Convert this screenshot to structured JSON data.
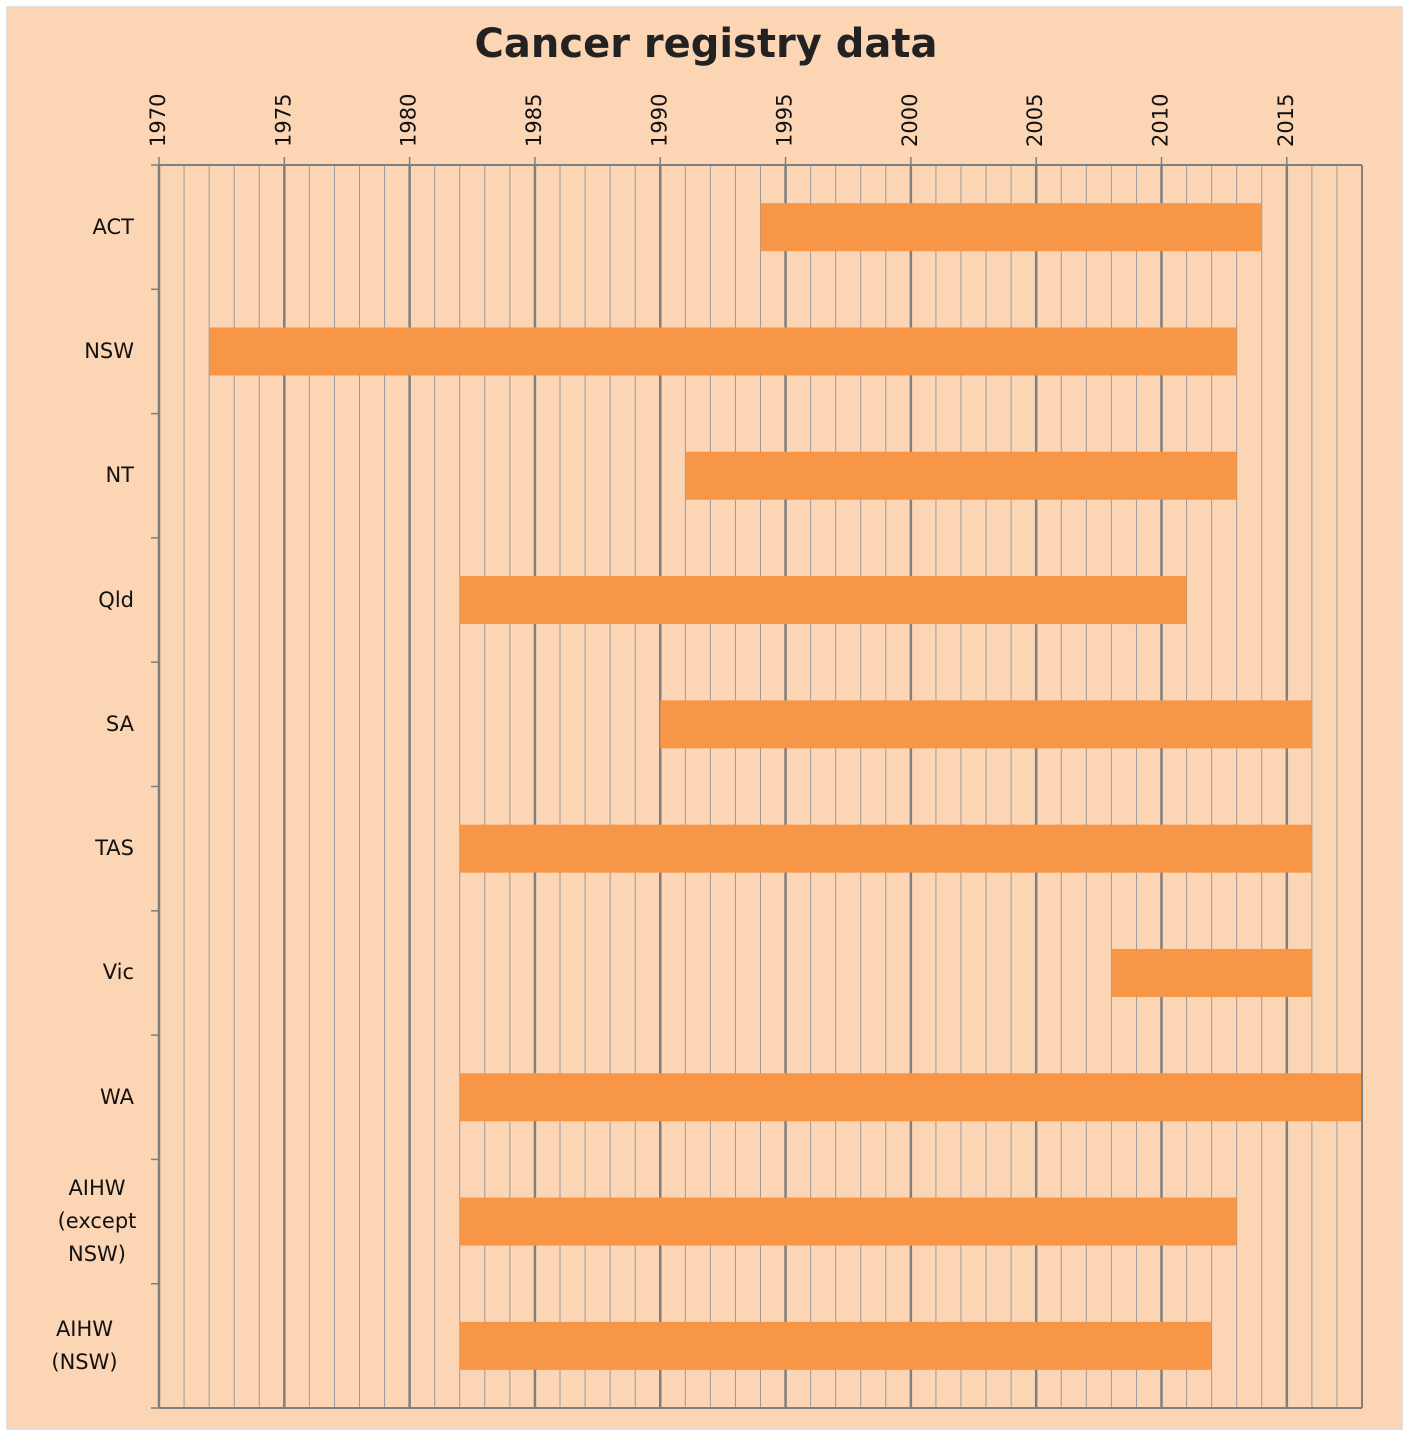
{
  "chart_data": {
    "type": "range_bar",
    "title": "Cancer registry data",
    "categories": [
      "ACT",
      "NSW",
      "NT",
      "Qld",
      "SA",
      "TAS",
      "Vic",
      "WA",
      "AIHW (except NSW)",
      "AIHW (NSW)"
    ],
    "start": [
      1994,
      1972,
      1991,
      1982,
      1990,
      1982,
      2008,
      1982,
      1982,
      1982
    ],
    "end": [
      2014,
      2013,
      2013,
      2011,
      2016,
      2016,
      2016,
      2018,
      2013,
      2012
    ],
    "color": "#f79646",
    "xlim": [
      1970,
      2018
    ],
    "xticks": [
      1970,
      1975,
      1980,
      1985,
      1990,
      1995,
      2000,
      2005,
      2010,
      2015
    ],
    "minor_grid_step": 1,
    "grid": true
  }
}
